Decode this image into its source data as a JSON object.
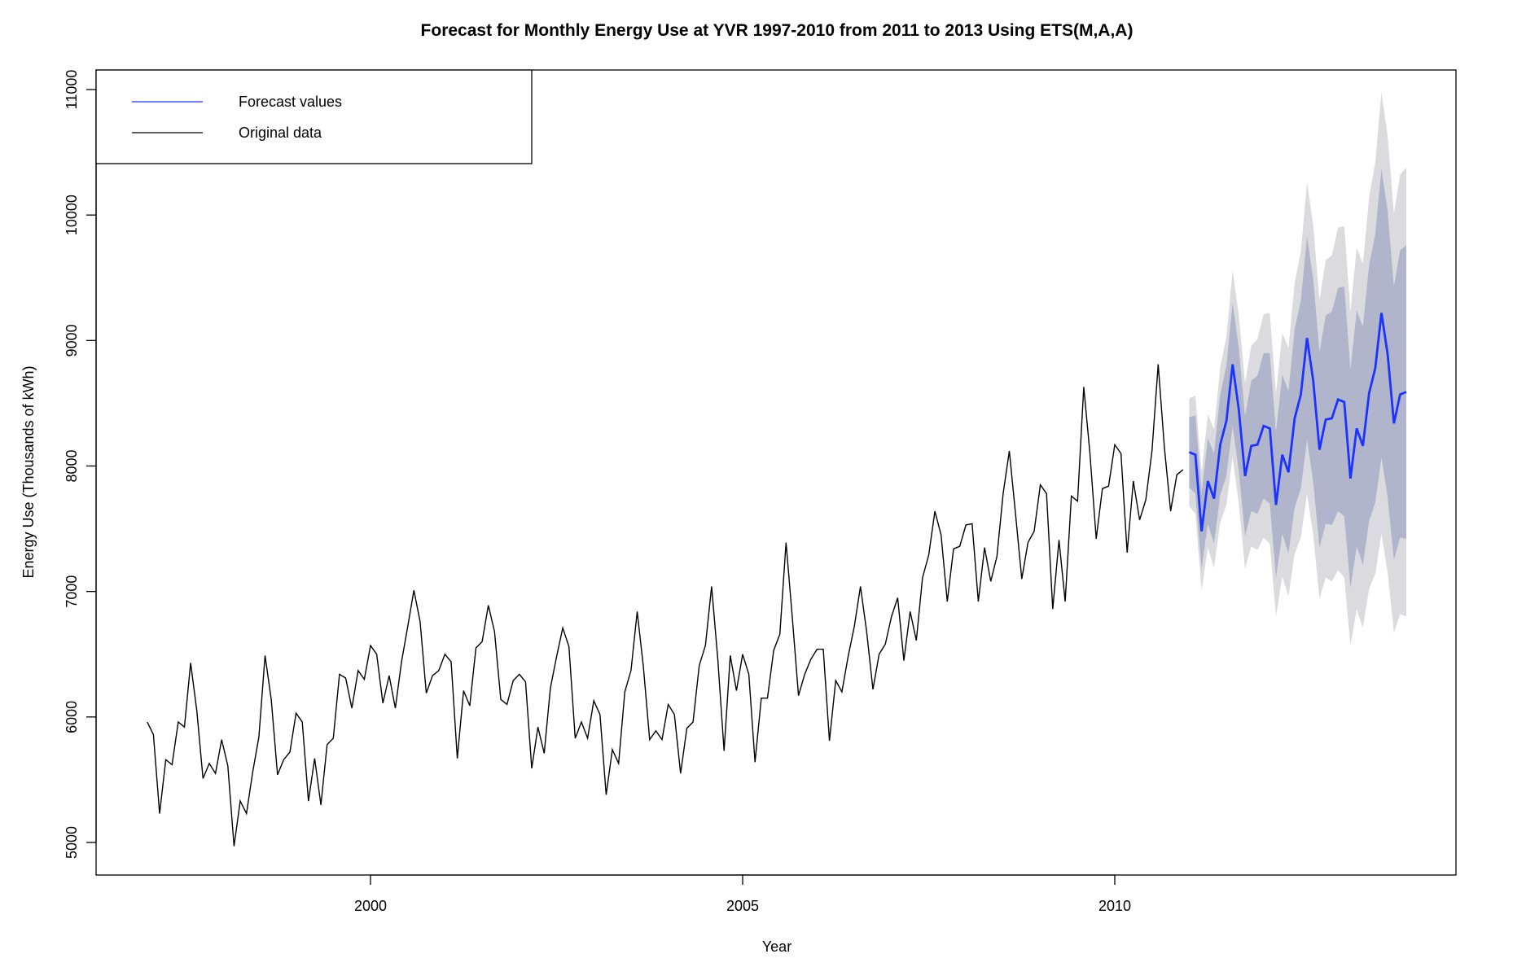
{
  "chart_data": {
    "type": "line",
    "title": "Forecast for Monthly Energy Use at YVR 1997-2010 from 2011 to 2013 Using ETS(M,A,A)",
    "xlabel": "Year",
    "ylabel": "Energy Use (Thousands of kWh)",
    "xlim": [
      1996.4,
      2014.6
    ],
    "ylim": [
      4750,
      11150
    ],
    "x_ticks": [
      2000,
      2005,
      2010
    ],
    "y_ticks": [
      5000,
      6000,
      7000,
      8000,
      9000,
      10000,
      11000
    ],
    "grid": false,
    "legend": {
      "placement": "top-left",
      "entries": [
        {
          "label": "Forecast values",
          "color": "#1a33ff"
        },
        {
          "label": "Original data",
          "color": "#000000"
        }
      ]
    },
    "colors": {
      "original": "#000000",
      "forecast": "#1a33ff",
      "pi80": "#b1b5cc",
      "pi95": "#dbdbdf"
    },
    "original": {
      "start": "1997-01",
      "frequency": "monthly",
      "values": [
        5960,
        5860,
        5230,
        5660,
        5620,
        5960,
        5920,
        6430,
        6050,
        5510,
        5630,
        5550,
        5820,
        5610,
        4970,
        5330,
        5230,
        5560,
        5840,
        6490,
        6140,
        5540,
        5660,
        5720,
        6030,
        5960,
        5330,
        5670,
        5300,
        5780,
        5830,
        6340,
        6310,
        6070,
        6370,
        6300,
        6570,
        6500,
        6110,
        6330,
        6070,
        6440,
        6720,
        7010,
        6760,
        6190,
        6330,
        6370,
        6500,
        6440,
        5670,
        6210,
        6090,
        6550,
        6600,
        6890,
        6680,
        6140,
        6100,
        6290,
        6340,
        6280,
        5590,
        5920,
        5710,
        6230,
        6480,
        6710,
        6560,
        5830,
        5960,
        5830,
        6130,
        6020,
        5380,
        5740,
        5630,
        6200,
        6370,
        6840,
        6400,
        5820,
        5890,
        5820,
        6100,
        6020,
        5550,
        5910,
        5960,
        6410,
        6570,
        7040,
        6460,
        5730,
        6490,
        6210,
        6500,
        6340,
        5640,
        6150,
        6150,
        6530,
        6660,
        7390,
        6800,
        6170,
        6340,
        6460,
        6540,
        6540,
        5810,
        6290,
        6200,
        6480,
        6720,
        7040,
        6680,
        6220,
        6500,
        6580,
        6800,
        6950,
        6450,
        6840,
        6610,
        7110,
        7290,
        7640,
        7450,
        6920,
        7340,
        7360,
        7530,
        7540,
        6920,
        7350,
        7080,
        7280,
        7780,
        8120,
        7620,
        7100,
        7390,
        7480,
        7850,
        7780,
        6860,
        7410,
        6920,
        7760,
        7720,
        8630,
        8100,
        7420,
        7820,
        7840,
        8170,
        8100,
        7310,
        7880,
        7570,
        7730,
        8120,
        8810,
        8150,
        7640,
        7930,
        7970
      ]
    },
    "forecast": {
      "start": "2011-01",
      "frequency": "monthly",
      "mean": [
        8110,
        8090,
        7480,
        7880,
        7740,
        8170,
        8360,
        8810,
        8450,
        7920,
        8160,
        8170,
        8320,
        8300,
        7690,
        8090,
        7950,
        8380,
        8570,
        9020,
        8680,
        8130,
        8370,
        8380,
        8530,
        8510,
        7900,
        8300,
        8160,
        8580,
        8780,
        9220,
        8890,
        8340,
        8570,
        8590
      ],
      "hi80": [
        8390,
        8400,
        7790,
        8220,
        8100,
        8570,
        8800,
        9300,
        8940,
        8400,
        8680,
        8720,
        8900,
        8900,
        8270,
        8730,
        8600,
        9090,
        9320,
        9830,
        9490,
        8910,
        9200,
        9230,
        9420,
        9430,
        8770,
        9240,
        9110,
        9600,
        9850,
        10370,
        10030,
        9430,
        9720,
        9760
      ],
      "lo80": [
        7830,
        7780,
        7180,
        7540,
        7380,
        7770,
        7920,
        8320,
        7960,
        7440,
        7640,
        7620,
        7740,
        7700,
        7110,
        7460,
        7300,
        7670,
        7820,
        8210,
        7870,
        7350,
        7540,
        7530,
        7640,
        7600,
        7030,
        7360,
        7210,
        7560,
        7710,
        8070,
        7750,
        7250,
        7430,
        7420
      ],
      "hi95": [
        8540,
        8560,
        7950,
        8410,
        8290,
        8790,
        9030,
        9560,
        9200,
        8660,
        8960,
        9010,
        9210,
        9220,
        8580,
        9060,
        8940,
        9460,
        9710,
        10260,
        9920,
        9320,
        9640,
        9680,
        9900,
        9910,
        9230,
        9740,
        9610,
        10140,
        10420,
        10980,
        10630,
        10010,
        10320,
        10380
      ],
      "lo95": [
        7680,
        7620,
        7010,
        7350,
        7190,
        7550,
        7690,
        8070,
        7700,
        7180,
        7360,
        7330,
        7430,
        7380,
        6800,
        7120,
        6960,
        7300,
        7430,
        7780,
        7450,
        6940,
        7110,
        7080,
        7170,
        7110,
        6570,
        6860,
        6710,
        7020,
        7140,
        7460,
        7150,
        6670,
        6820,
        6800
      ]
    }
  }
}
